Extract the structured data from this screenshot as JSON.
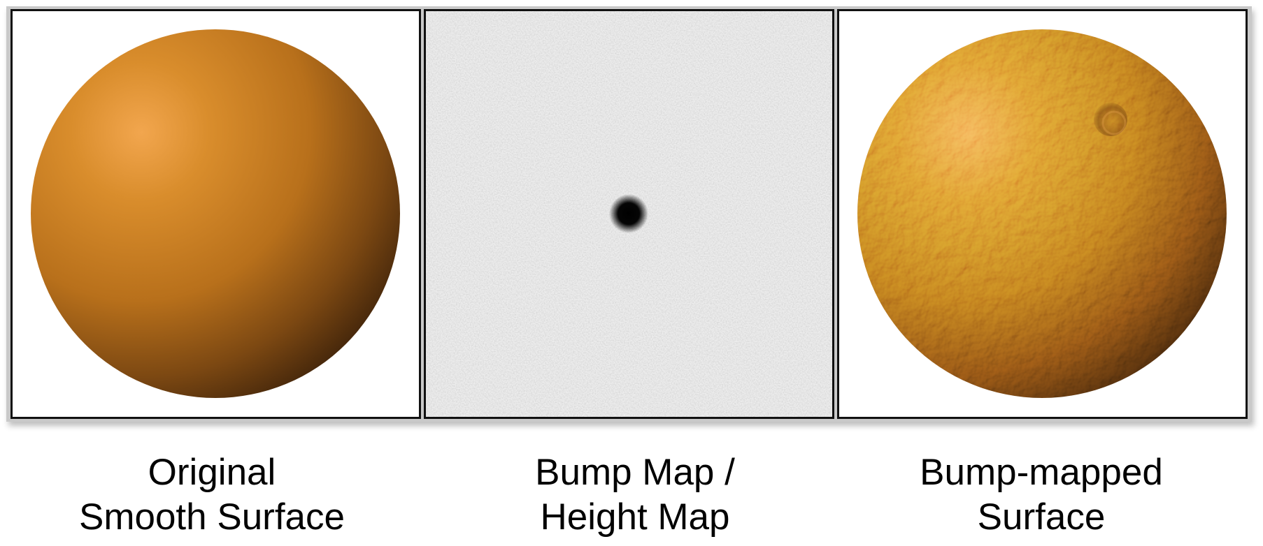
{
  "panels": [
    {
      "caption_line1": "Original",
      "caption_line2": "Smooth Surface",
      "image": "smooth-orange-sphere",
      "colors": {
        "highlight": "#f0a24a",
        "base": "#c97b1f",
        "shadow": "#4a2a0c"
      }
    },
    {
      "caption_line1": "Bump Map /",
      "caption_line2": "Height Map",
      "image": "grayscale-noise-with-black-dot",
      "colors": {
        "background": "#e2e2e2",
        "dot": "#000000"
      }
    },
    {
      "caption_line1": "Bump-mapped",
      "caption_line2": "Surface",
      "image": "bumpy-orange-sphere-with-dent",
      "colors": {
        "highlight": "#f0a24a",
        "base": "#c97b1f",
        "shadow": "#4a2a0c"
      }
    }
  ]
}
